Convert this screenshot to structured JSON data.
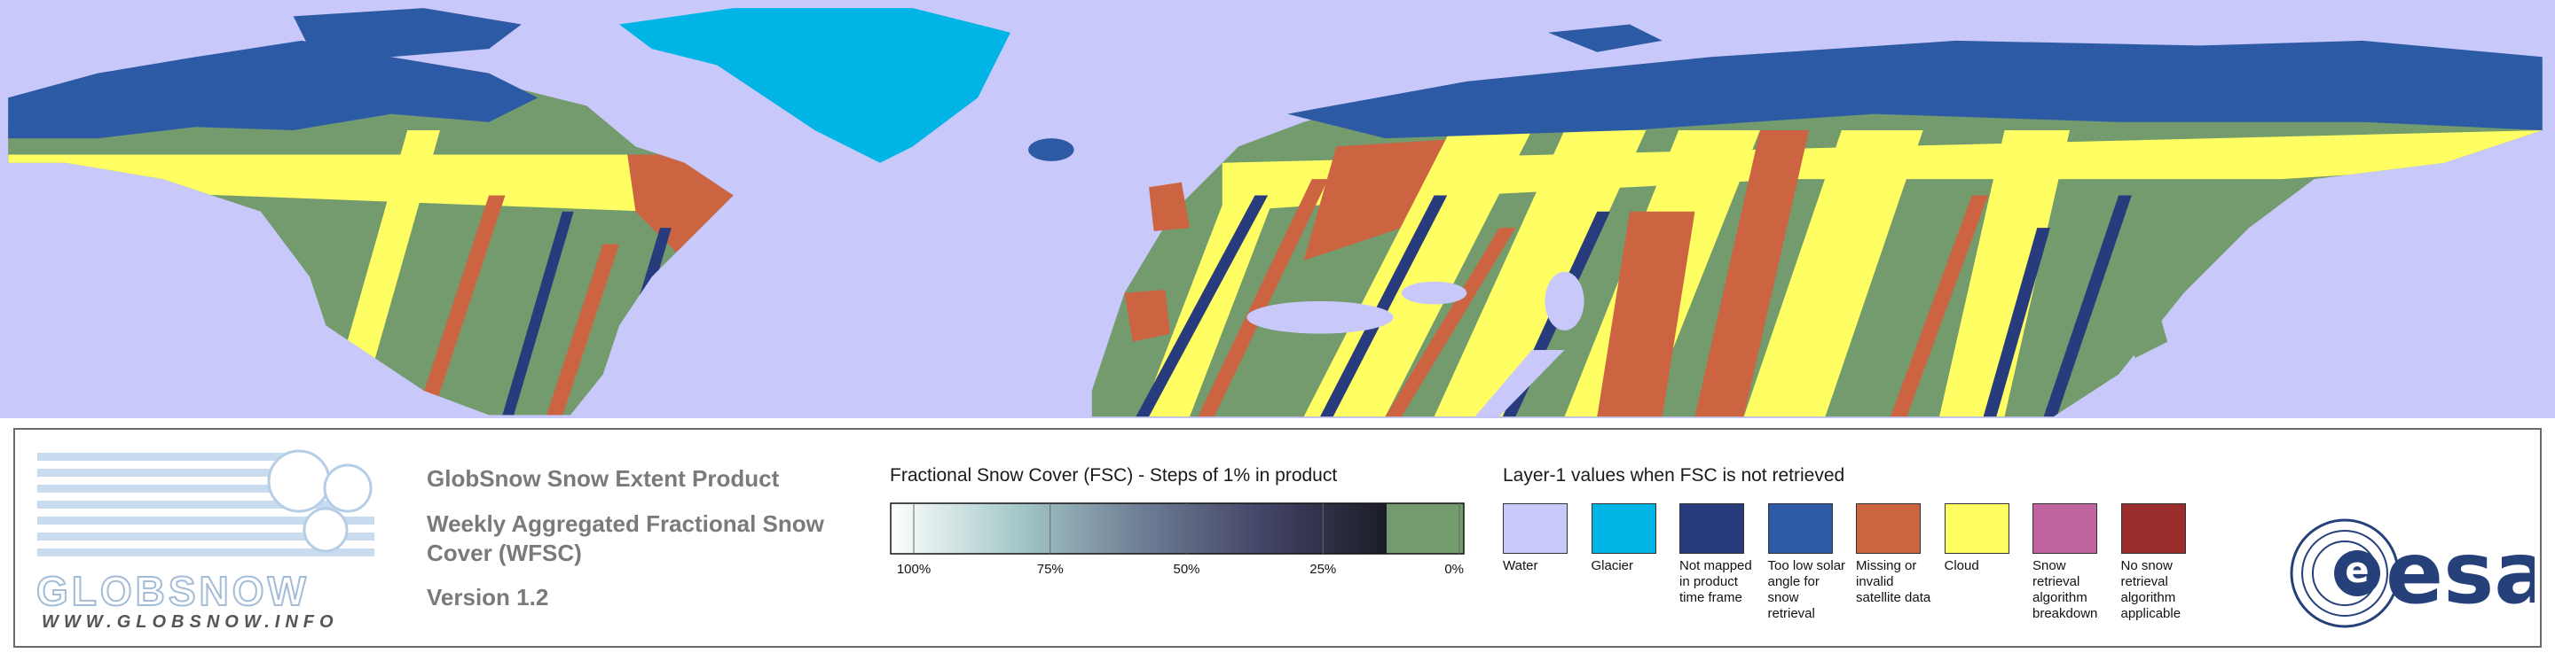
{
  "header": {
    "title": "GlobSnow Snow Extent Product",
    "subtitle": "Weekly Aggregated Fractional Snow Cover (WFSC)",
    "version": "Version 1.2"
  },
  "logo": {
    "name": "GLOBSNOW",
    "url": "WWW.GLOBSNOW.INFO",
    "agency": "esa"
  },
  "fsc_legend": {
    "title": "Fractional Snow Cover (FSC) - Steps of 1% in product",
    "ticks": [
      {
        "value": 100,
        "label": "100%"
      },
      {
        "value": 75,
        "label": "75%"
      },
      {
        "value": 50,
        "label": "50%"
      },
      {
        "value": 25,
        "label": "25%"
      },
      {
        "value": 0,
        "label": "0%"
      }
    ],
    "gradient": [
      "#ffffff",
      "#a6cac9",
      "#6f7f96",
      "#434566",
      "#1c1c28"
    ],
    "snow_free_color": "#739b6e"
  },
  "layer1_legend": {
    "title": "Layer-1 values when FSC is not retrieved",
    "items": [
      {
        "label": "Water",
        "color": "#c8c8fa"
      },
      {
        "label": "Glacier",
        "color": "#00b4e6"
      },
      {
        "label": "Not mapped in product time frame",
        "color": "#283c7d"
      },
      {
        "label": "Too low solar angle for snow retrieval",
        "color": "#2d5aa5"
      },
      {
        "label": "Missing or invalid satellite data",
        "color": "#cd6441"
      },
      {
        "label": "Cloud",
        "color": "#ffff64"
      },
      {
        "label": "Snow retrieval algorithm breakdown",
        "color": "#c064a0"
      },
      {
        "label": "No snow retrieval algorithm applicable",
        "color": "#9b2d2d"
      }
    ]
  }
}
